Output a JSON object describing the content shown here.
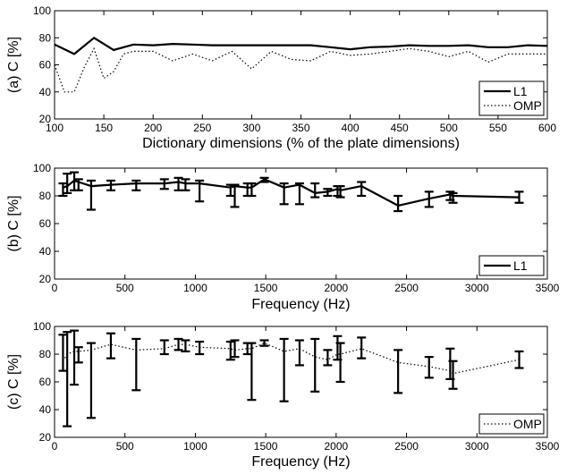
{
  "chart_data": [
    {
      "type": "line",
      "panel_label": "(a)",
      "ylabel": "C [%]",
      "xlabel": "Dictionary dimensions (% of the plate dimensions)",
      "xlim": [
        100,
        600
      ],
      "ylim": [
        20,
        100
      ],
      "xticks": [
        100,
        150,
        200,
        250,
        300,
        350,
        400,
        450,
        500,
        550,
        600
      ],
      "yticks": [
        20,
        40,
        60,
        80,
        100
      ],
      "legend_position": "bottom-right",
      "series": [
        {
          "name": "L1",
          "style": "solid",
          "x": [
            100,
            120,
            140,
            160,
            180,
            200,
            220,
            240,
            260,
            280,
            300,
            320,
            340,
            360,
            380,
            400,
            420,
            440,
            460,
            480,
            500,
            520,
            540,
            560,
            580,
            600
          ],
          "y": [
            75,
            68,
            80,
            71,
            75,
            74.5,
            75.5,
            75,
            74.5,
            74.5,
            74.5,
            74.5,
            74.5,
            74.5,
            73,
            71.5,
            73,
            73.5,
            74.5,
            74,
            74,
            74.5,
            73,
            73,
            74.5,
            74
          ]
        },
        {
          "name": "OMP",
          "style": "dotted",
          "x": [
            100,
            110,
            120,
            130,
            140,
            150,
            160,
            170,
            180,
            200,
            220,
            240,
            260,
            280,
            300,
            320,
            340,
            360,
            380,
            400,
            420,
            440,
            460,
            480,
            500,
            520,
            540,
            560,
            580,
            600
          ],
          "y": [
            60,
            40,
            40,
            58,
            72,
            50,
            55,
            68,
            70,
            70,
            63,
            68,
            63,
            70,
            57,
            70,
            64,
            63,
            70,
            67,
            68,
            70,
            72,
            70,
            66,
            70,
            62,
            68,
            68,
            68
          ]
        }
      ]
    },
    {
      "type": "line",
      "panel_label": "(b)",
      "ylabel": "C [%]",
      "xlabel": "Frequency (Hz)",
      "xlim": [
        0,
        3500
      ],
      "ylim": [
        20,
        100
      ],
      "xticks": [
        0,
        500,
        1000,
        1500,
        2000,
        2500,
        3000,
        3500
      ],
      "yticks": [
        20,
        40,
        60,
        80,
        100
      ],
      "legend_position": "bottom-right",
      "series": [
        {
          "name": "L1",
          "style": "solid",
          "x": [
            60,
            90,
            140,
            170,
            260,
            400,
            580,
            780,
            880,
            930,
            1030,
            1250,
            1280,
            1370,
            1400,
            1490,
            1630,
            1740,
            1850,
            1940,
            2010,
            2030,
            2180,
            2440,
            2660,
            2810,
            2830,
            3300
          ],
          "y": [
            86,
            87,
            91,
            90,
            87,
            88,
            89,
            89,
            90,
            89,
            89,
            86,
            87,
            86,
            86,
            92,
            86,
            88,
            82,
            83,
            85,
            84,
            87,
            73,
            78,
            81,
            80,
            79
          ],
          "err_low": [
            80,
            82,
            84,
            84,
            70,
            84,
            84,
            85,
            84,
            84,
            76,
            80,
            72,
            80,
            80,
            90,
            74,
            74,
            79,
            80,
            80,
            79,
            80,
            69,
            72,
            77,
            75,
            75
          ],
          "err_high": [
            89,
            96,
            97,
            92,
            91,
            91,
            91,
            92,
            93,
            92,
            91,
            88,
            88,
            89,
            89,
            93,
            89,
            89,
            89,
            85,
            87,
            87,
            90,
            80,
            83,
            83,
            82,
            83
          ]
        }
      ]
    },
    {
      "type": "line",
      "panel_label": "(c)",
      "ylabel": "C [%]",
      "xlabel": "Frequency (Hz)",
      "xlim": [
        0,
        3500
      ],
      "ylim": [
        20,
        100
      ],
      "xticks": [
        0,
        500,
        1000,
        1500,
        2000,
        2500,
        3000,
        3500
      ],
      "yticks": [
        20,
        40,
        60,
        80,
        100
      ],
      "legend_position": "bottom-right",
      "series": [
        {
          "name": "OMP",
          "style": "dotted",
          "x": [
            60,
            90,
            140,
            170,
            260,
            400,
            580,
            780,
            880,
            930,
            1030,
            1250,
            1280,
            1370,
            1400,
            1490,
            1630,
            1740,
            1850,
            1940,
            2010,
            2030,
            2180,
            2440,
            2660,
            2810,
            2830,
            3300
          ],
          "y": [
            75,
            80,
            82,
            82,
            83,
            87,
            83,
            84,
            87,
            87,
            85,
            84,
            83,
            84,
            84,
            88,
            82,
            84,
            78,
            76,
            80,
            80,
            84,
            74,
            71,
            68,
            66,
            76
          ],
          "err_low": [
            68,
            28,
            58,
            74,
            34,
            77,
            54,
            80,
            83,
            82,
            80,
            76,
            78,
            80,
            47,
            86,
            46,
            72,
            53,
            72,
            76,
            60,
            77,
            52,
            63,
            62,
            55,
            70
          ],
          "err_high": [
            94,
            96,
            97,
            85,
            88,
            95,
            91,
            90,
            91,
            90,
            89,
            89,
            90,
            88,
            88,
            90,
            91,
            90,
            91,
            83,
            93,
            88,
            92,
            83,
            78,
            84,
            75,
            82
          ]
        }
      ]
    }
  ]
}
